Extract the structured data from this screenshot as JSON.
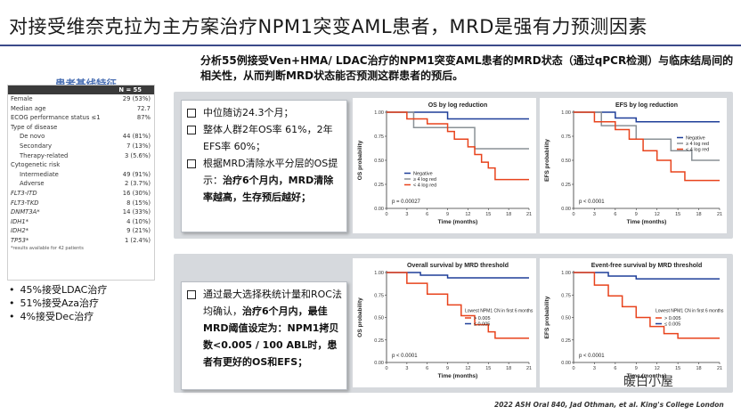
{
  "title": "对接受维奈克拉为主方案治疗NPM1突变AML患者，MRD是强有力预测因素",
  "subtitle": "分析55例接受Ven+HMA/ LDAC治疗的NPM1突变AML患者的MRD状态（通过qPCR检测）与临床结局间的相关性，从而判断MRD状态能否预测这群患者的预后。",
  "baseline": {
    "title": "患者基线特征",
    "header": "N = 55",
    "rows": [
      {
        "label": "Female",
        "value": "29 (53%)",
        "style": ""
      },
      {
        "label": "Median age",
        "value": "72.7",
        "style": ""
      },
      {
        "label": "ECOG performance status ≤1",
        "value": "87%",
        "style": ""
      },
      {
        "label": "Type of disease",
        "value": "",
        "style": ""
      },
      {
        "label": "De novo",
        "value": "44 (81%)",
        "style": "ind1"
      },
      {
        "label": "Secondary",
        "value": "7 (13%)",
        "style": "ind1"
      },
      {
        "label": "Therapy-related",
        "value": "3 (5.6%)",
        "style": "ind1"
      },
      {
        "label": "Cytogenetic risk",
        "value": "",
        "style": ""
      },
      {
        "label": "Intermediate",
        "value": "49 (91%)",
        "style": "ind1"
      },
      {
        "label": "Adverse",
        "value": "2 (3.7%)",
        "style": "ind1"
      },
      {
        "label": "FLT3-ITD",
        "value": "16 (30%)",
        "style": "ital"
      },
      {
        "label": "FLT3-TKD",
        "value": "8 (15%)",
        "style": "ital"
      },
      {
        "label": "DNMT3A*",
        "value": "14 (33%)",
        "style": "ital"
      },
      {
        "label": "IDH1*",
        "value": "4 (10%)",
        "style": "ital"
      },
      {
        "label": "IDH2*",
        "value": "9 (21%)",
        "style": "ital"
      },
      {
        "label": "TP53*",
        "value": "1 (2.4%)",
        "style": "ital"
      }
    ],
    "footnote": "*results available for 42 patients"
  },
  "left_bullets": [
    "45%接受LDAC治疗",
    "51%接受Aza治疗",
    "4%接受Dec治疗"
  ],
  "box1": {
    "items": [
      {
        "text": "中位随访24.3个月；",
        "bold": ""
      },
      {
        "text": "整体人群2年OS率 61%，2年EFS率 60%；",
        "bold": ""
      },
      {
        "text": "根据MRD清除水平分层的OS提示：",
        "bold": "治疗6个月内，MRD清除率越高，生存预后越好；"
      }
    ]
  },
  "box2": {
    "text": "通过最大选择秩统计量和ROC法均确认，",
    "bold": "治疗6个月内，最佳MRD阈值设定为：NPM1拷贝数<0.005 / 100 ABL时，患者有更好的OS和EFS；"
  },
  "colors": {
    "negative": "#1f3f99",
    "ge4": "#8a9196",
    "lt4": "#e8431c",
    "above": "#1f3f99",
    "below": "#e8431c"
  },
  "plots": [
    {
      "id": "os-log",
      "title": "OS by log reduction",
      "ylabel": "OS probability",
      "xlabel": "Time (months)",
      "pvalue": "p = 0.00027",
      "legend_title": "",
      "legend": [
        {
          "name": "Negative",
          "color": "#1f3f99"
        },
        {
          "name": "≥ 4 log red",
          "color": "#8a9196"
        },
        {
          "name": "< 4 log red",
          "color": "#e8431c"
        }
      ],
      "series": [
        {
          "color": "#1f3f99",
          "points": [
            [
              0,
              1
            ],
            [
              9,
              1
            ],
            [
              9,
              0.93
            ],
            [
              21,
              0.93
            ]
          ]
        },
        {
          "color": "#8a9196",
          "points": [
            [
              0,
              1
            ],
            [
              4,
              1
            ],
            [
              4,
              0.84
            ],
            [
              13,
              0.84
            ],
            [
              13,
              0.62
            ],
            [
              21,
              0.62
            ]
          ]
        },
        {
          "color": "#e8431c",
          "points": [
            [
              0,
              1
            ],
            [
              3,
              1
            ],
            [
              3,
              0.93
            ],
            [
              6,
              0.93
            ],
            [
              6,
              0.88
            ],
            [
              9,
              0.88
            ],
            [
              9,
              0.8
            ],
            [
              10,
              0.8
            ],
            [
              10,
              0.72
            ],
            [
              12,
              0.72
            ],
            [
              12,
              0.64
            ],
            [
              13,
              0.64
            ],
            [
              13,
              0.56
            ],
            [
              14,
              0.56
            ],
            [
              14,
              0.48
            ],
            [
              15,
              0.48
            ],
            [
              15,
              0.42
            ],
            [
              16,
              0.42
            ],
            [
              16,
              0.3
            ],
            [
              21,
              0.3
            ]
          ]
        }
      ]
    },
    {
      "id": "efs-log",
      "title": "EFS by log reduction",
      "ylabel": "EFS probability",
      "xlabel": "Time (months)",
      "pvalue": "p < 0.0001",
      "legend_title": "",
      "legend": [
        {
          "name": "Negative",
          "color": "#1f3f99"
        },
        {
          "name": "≥ 4 log red",
          "color": "#8a9196"
        },
        {
          "name": "< 4 log red",
          "color": "#e8431c"
        }
      ],
      "series": [
        {
          "color": "#1f3f99",
          "points": [
            [
              0,
              1
            ],
            [
              6,
              1
            ],
            [
              6,
              0.94
            ],
            [
              9,
              0.94
            ],
            [
              9,
              0.9
            ],
            [
              21,
              0.9
            ]
          ]
        },
        {
          "color": "#8a9196",
          "points": [
            [
              0,
              1
            ],
            [
              4,
              1
            ],
            [
              4,
              0.86
            ],
            [
              9,
              0.86
            ],
            [
              9,
              0.72
            ],
            [
              14,
              0.72
            ],
            [
              14,
              0.6
            ],
            [
              17,
              0.6
            ],
            [
              17,
              0.5
            ],
            [
              21,
              0.5
            ]
          ]
        },
        {
          "color": "#e8431c",
          "points": [
            [
              0,
              1
            ],
            [
              3,
              1
            ],
            [
              3,
              0.9
            ],
            [
              6,
              0.9
            ],
            [
              6,
              0.82
            ],
            [
              8,
              0.82
            ],
            [
              8,
              0.72
            ],
            [
              10,
              0.72
            ],
            [
              10,
              0.6
            ],
            [
              12,
              0.6
            ],
            [
              12,
              0.5
            ],
            [
              14,
              0.5
            ],
            [
              14,
              0.38
            ],
            [
              16,
              0.38
            ],
            [
              16,
              0.29
            ],
            [
              21,
              0.29
            ]
          ]
        }
      ]
    },
    {
      "id": "os-mrd",
      "title": "Overall survival by MRD threshold",
      "ylabel": "OS probability",
      "xlabel": "Time (months)",
      "pvalue": "p < 0.0001",
      "legend_title": "Lowest NPM1 CN in first 6 months",
      "legend": [
        {
          "name": "> 0.005",
          "color": "#e8431c"
        },
        {
          "name": "≤ 0.005",
          "color": "#1f3f99"
        }
      ],
      "series": [
        {
          "color": "#1f3f99",
          "points": [
            [
              0,
              1
            ],
            [
              5,
              1
            ],
            [
              5,
              0.97
            ],
            [
              9,
              0.97
            ],
            [
              9,
              0.94
            ],
            [
              21,
              0.94
            ]
          ]
        },
        {
          "color": "#e8431c",
          "points": [
            [
              0,
              1
            ],
            [
              3,
              1
            ],
            [
              3,
              0.88
            ],
            [
              6,
              0.88
            ],
            [
              6,
              0.76
            ],
            [
              9,
              0.76
            ],
            [
              9,
              0.64
            ],
            [
              11,
              0.64
            ],
            [
              11,
              0.52
            ],
            [
              13,
              0.52
            ],
            [
              13,
              0.42
            ],
            [
              15,
              0.42
            ],
            [
              15,
              0.34
            ],
            [
              16,
              0.34
            ],
            [
              16,
              0.27
            ],
            [
              21,
              0.27
            ]
          ]
        }
      ]
    },
    {
      "id": "efs-mrd",
      "title": "Event-free survival by MRD threshold",
      "ylabel": "EFS probability",
      "xlabel": "Time (months)",
      "pvalue": "p < 0.0001",
      "legend_title": "Lowest NPM1 CN in first 6 months",
      "legend": [
        {
          "name": "> 0.005",
          "color": "#e8431c"
        },
        {
          "name": "≤ 0.005",
          "color": "#1f3f99"
        }
      ],
      "series": [
        {
          "color": "#1f3f99",
          "points": [
            [
              0,
              1
            ],
            [
              5,
              1
            ],
            [
              5,
              0.96
            ],
            [
              9,
              0.96
            ],
            [
              9,
              0.93
            ],
            [
              21,
              0.93
            ]
          ]
        },
        {
          "color": "#e8431c",
          "points": [
            [
              0,
              1
            ],
            [
              3,
              1
            ],
            [
              3,
              0.86
            ],
            [
              5,
              0.86
            ],
            [
              5,
              0.74
            ],
            [
              7,
              0.74
            ],
            [
              7,
              0.62
            ],
            [
              9,
              0.62
            ],
            [
              9,
              0.5
            ],
            [
              11,
              0.5
            ],
            [
              11,
              0.4
            ],
            [
              13,
              0.4
            ],
            [
              13,
              0.32
            ],
            [
              15,
              0.32
            ],
            [
              15,
              0.27
            ],
            [
              21,
              0.27
            ]
          ]
        }
      ]
    }
  ],
  "axis": {
    "xticks": [
      0,
      3,
      6,
      9,
      12,
      15,
      18,
      21
    ],
    "yticks": [
      "0.00",
      "0.25",
      "0.50",
      "0.75",
      "1.00"
    ]
  },
  "footer": "2022 ASH Oral 840, Jad Othman, et al. King's College London",
  "watermark": "暖白小屋"
}
